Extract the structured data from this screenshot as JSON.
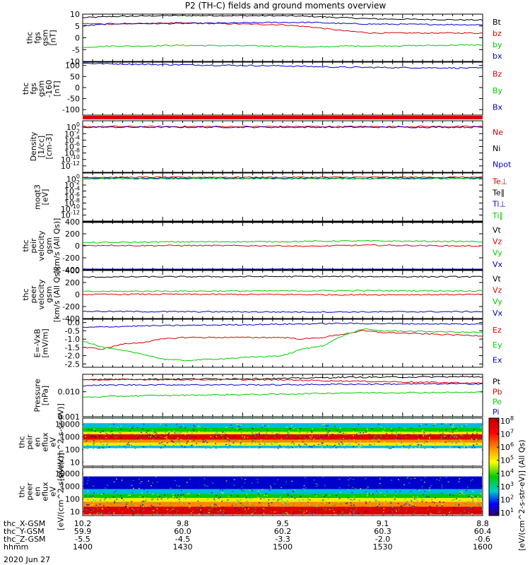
{
  "title": "P2 (TH-C) fields and ground moments overview",
  "footer": {
    "rows": [
      {
        "label": "thc_X-GSM",
        "values": [
          "10.2",
          "9.8",
          "9.5",
          "9.1",
          "8.8"
        ]
      },
      {
        "label": "thc_Y-GSM",
        "values": [
          "59.9",
          "60.0",
          "60.2",
          "60.3",
          "60.4"
        ]
      },
      {
        "label": "thc_Z-GSM",
        "values": [
          "-5.5",
          "-4.5",
          "-3.3",
          "-2.0",
          "-0.6"
        ]
      },
      {
        "label": "hhmm",
        "values": [
          "1400",
          "1430",
          "1500",
          "1530",
          "1600"
        ]
      }
    ],
    "date": "2020 Jun 27"
  },
  "colorbar": {
    "label": "[eV/(cm^2-s-str-eV)] (All Qs)",
    "ticks": [
      "10^8",
      "10^7",
      "10^6",
      "10^5",
      "10^4",
      "10^3",
      "10^2",
      "10^1"
    ]
  },
  "colors": {
    "black": "#000000",
    "red": "#dd0000",
    "green": "#00cc00",
    "blue": "#0000cc",
    "orange": "#ff8800",
    "cyan": "#00bbdd",
    "yellow": "#eeee00"
  },
  "chart_data": [
    {
      "type": "line",
      "ylabel": [
        "thc",
        "fgs",
        "gsm",
        "[nT]"
      ],
      "ylim": [
        -10,
        10
      ],
      "yticks": [
        "10",
        "5",
        "0",
        "-5",
        "-10"
      ],
      "series": [
        {
          "name": "Bt",
          "color": "#000000",
          "x": [
            1400,
            1415,
            1430,
            1445,
            1500,
            1515,
            1530,
            1545,
            1600
          ],
          "values": [
            8.5,
            9.0,
            9.2,
            9.4,
            9.3,
            9.0,
            8.5,
            8.0,
            7.5
          ]
        },
        {
          "name": "bz",
          "color": "#dd0000",
          "x": [
            1400,
            1415,
            1430,
            1445,
            1500,
            1515,
            1530,
            1545,
            1600
          ],
          "values": [
            6.0,
            5.8,
            6.0,
            6.3,
            5.5,
            4.5,
            3.0,
            2.0,
            2.0
          ]
        },
        {
          "name": "by",
          "color": "#00cc00",
          "x": [
            1400,
            1415,
            1430,
            1445,
            1500,
            1515,
            1530,
            1545,
            1600
          ],
          "values": [
            -4.0,
            -3.5,
            -3.5,
            -3.2,
            -3.5,
            -4.0,
            -3.5,
            -3.5,
            -3.0
          ]
        },
        {
          "name": "bx",
          "color": "#0000cc",
          "x": [
            1400,
            1415,
            1430,
            1445,
            1500,
            1515,
            1530,
            1545,
            1600
          ],
          "values": [
            5.0,
            6.0,
            6.0,
            6.0,
            6.5,
            6.5,
            6.0,
            5.8,
            5.5
          ]
        }
      ]
    },
    {
      "type": "line",
      "ylabel": [
        "thc",
        "fgs",
        "gsm",
        "-160",
        "[nT]"
      ],
      "ylim": [
        -125,
        115
      ],
      "yticks": [
        "100",
        "50",
        "0",
        "-50",
        "-100"
      ],
      "series": [
        {
          "name": "Bz",
          "color": "#dd0000",
          "x": [],
          "values": []
        },
        {
          "name": "By",
          "color": "#00cc00",
          "x": [],
          "values": []
        },
        {
          "name": "Bx",
          "color": "#0000cc",
          "x": [
            1400,
            1430,
            1500,
            1530,
            1600
          ],
          "values": [
            110,
            105,
            98,
            92,
            88
          ]
        }
      ]
    },
    {
      "type": "line",
      "ylabel": [
        "Density",
        "[1/cc]",
        "[cm-3]"
      ],
      "ylim": [
        -14,
        2
      ],
      "yticks": [
        "10^0",
        "10^-2",
        "10^-4",
        "10^-6",
        "10^-8",
        "10^-10",
        "10^-12"
      ],
      "series": [
        {
          "name": "Ne",
          "color": "#dd0000",
          "x": [
            1400,
            1600
          ],
          "values": [
            0.2,
            0.2
          ]
        },
        {
          "name": "Ni",
          "color": "#000000",
          "x": [],
          "values": []
        },
        {
          "name": "Npot",
          "color": "#0000cc",
          "x": [
            1400,
            1600
          ],
          "values": [
            0.0,
            0.0
          ]
        }
      ]
    },
    {
      "type": "line",
      "ylabel": [
        "moqt3",
        "[eV]"
      ],
      "ylim": [
        -14,
        2
      ],
      "yticks": [
        "10^0",
        "10^-2",
        "10^-4",
        "10^-6",
        "10^-8",
        "10^-10",
        "10^-12"
      ],
      "series": [
        {
          "name": "Te⊥",
          "color": "#dd0000",
          "x": [
            1400,
            1600
          ],
          "values": [
            0.6,
            0.6
          ]
        },
        {
          "name": "Te∥",
          "color": "#000000",
          "x": [],
          "values": []
        },
        {
          "name": "Ti⊥",
          "color": "#0000cc",
          "x": [
            1400,
            1600
          ],
          "values": [
            0.3,
            0.3
          ]
        },
        {
          "name": "Ti∥",
          "color": "#00cc00",
          "x": [
            1400,
            1600
          ],
          "values": [
            0.1,
            0.1
          ]
        }
      ]
    },
    {
      "type": "line",
      "ylabel": [
        "thc",
        "peir",
        "velocity",
        "gsm",
        "[km/s (All Qs)]"
      ],
      "ylim": [
        -400,
        400
      ],
      "yticks": [
        "400",
        "200",
        "0",
        "-200",
        "-400"
      ],
      "series": [
        {
          "name": "Vt",
          "color": "#000000",
          "x": [
            1400,
            1430,
            1500,
            1530,
            1600
          ],
          "values": [
            405,
            405,
            403,
            404,
            405
          ]
        },
        {
          "name": "Vz",
          "color": "#dd0000",
          "x": [
            1400,
            1415,
            1430,
            1445,
            1500,
            1515,
            1530,
            1545,
            1600
          ],
          "values": [
            5,
            8,
            2,
            5,
            0,
            -10,
            5,
            10,
            -5
          ]
        },
        {
          "name": "Vy",
          "color": "#00cc00",
          "x": [
            1400,
            1415,
            1430,
            1445,
            1500,
            1515,
            1530,
            1545,
            1600
          ],
          "values": [
            50,
            55,
            60,
            65,
            70,
            75,
            80,
            80,
            70
          ]
        },
        {
          "name": "Vx",
          "color": "#0000cc",
          "x": [
            1400,
            1430,
            1500,
            1530,
            1600
          ],
          "values": [
            -395,
            -395,
            -393,
            -395,
            -396
          ]
        }
      ]
    },
    {
      "type": "line",
      "ylabel": [
        "thc",
        "peer",
        "velocity",
        "gsm",
        "[km/s (All Qs)]"
      ],
      "ylim": [
        -400,
        400
      ],
      "yticks": [
        "400",
        "200",
        "0",
        "-200",
        "-400"
      ],
      "series": [
        {
          "name": "Vt",
          "color": "#000000",
          "x": [
            1400,
            1430,
            1500,
            1530,
            1600
          ],
          "values": [
            290,
            295,
            300,
            300,
            295
          ]
        },
        {
          "name": "Vz",
          "color": "#dd0000",
          "x": [
            1400,
            1430,
            1500,
            1530,
            1600
          ],
          "values": [
            0,
            5,
            0,
            -5,
            0
          ]
        },
        {
          "name": "Vy",
          "color": "#00cc00",
          "x": [
            1400,
            1430,
            1500,
            1530,
            1600
          ],
          "values": [
            50,
            55,
            60,
            65,
            60
          ]
        },
        {
          "name": "Vx",
          "color": "#0000cc",
          "x": [
            1400,
            1430,
            1500,
            1530,
            1600
          ],
          "values": [
            -280,
            -285,
            -290,
            -290,
            -285
          ]
        }
      ]
    },
    {
      "type": "line",
      "ylabel": [
        "E=-VxB",
        "[mV/m]"
      ],
      "ylim": [
        -2.7,
        0.2
      ],
      "yticks": [
        "0.0",
        "-0.5",
        "-1.0",
        "-1.5",
        "-2.0",
        "-2.5"
      ],
      "series": [
        {
          "name": "Ez",
          "color": "#dd0000",
          "x": [
            1400,
            1410,
            1420,
            1430,
            1440,
            1450,
            1500,
            1510,
            1520,
            1530,
            1540,
            1550,
            1600
          ],
          "values": [
            -1.5,
            -1.6,
            -1.3,
            -1.2,
            -1.0,
            -0.9,
            -0.9,
            -1.0,
            -0.9,
            -0.7,
            -0.5,
            -0.6,
            -0.8
          ]
        },
        {
          "name": "Ey",
          "color": "#00cc00",
          "x": [
            1400,
            1410,
            1420,
            1430,
            1440,
            1450,
            1500,
            1510,
            1520,
            1530,
            1540,
            1550,
            1600
          ],
          "values": [
            -1.1,
            -1.5,
            -1.7,
            -1.9,
            -2.2,
            -2.3,
            -2.0,
            -1.6,
            -1.4,
            -0.8,
            -0.4,
            -0.5,
            -0.6
          ]
        },
        {
          "name": "Ex",
          "color": "#0000cc",
          "x": [
            1400,
            1430,
            1500,
            1530,
            1600
          ],
          "values": [
            -0.3,
            -0.2,
            -0.1,
            -0.05,
            -0.1
          ]
        }
      ]
    },
    {
      "type": "line",
      "ylabel": [
        "Pressure",
        "[nPa]"
      ],
      "ylim": [
        0.001,
        0.05
      ],
      "ylog": true,
      "yticks": [
        "0.010",
        "0.001"
      ],
      "series": [
        {
          "name": "Pt",
          "color": "#000000",
          "x": [
            1400,
            1430,
            1500,
            1530,
            1600
          ],
          "values": [
            0.031,
            0.032,
            0.034,
            0.038,
            0.04
          ]
        },
        {
          "name": "Pb",
          "color": "#dd0000",
          "x": [
            1400,
            1430,
            1500,
            1530,
            1600
          ],
          "values": [
            0.03,
            0.031,
            0.03,
            0.027,
            0.022
          ]
        },
        {
          "name": "Pe",
          "color": "#00cc00",
          "x": [
            1400,
            1430,
            1500,
            1530,
            1600
          ],
          "values": [
            0.006,
            0.007,
            0.008,
            0.009,
            0.0095
          ]
        },
        {
          "name": "Pi",
          "color": "#0000cc",
          "x": [
            1400,
            1430,
            1500,
            1530,
            1600
          ],
          "values": [
            0.018,
            0.019,
            0.019,
            0.02,
            0.021
          ]
        }
      ]
    },
    {
      "type": "heatmap",
      "ylabel": [
        "thc",
        "peir",
        "en",
        "eflux",
        "eV",
        "[eV/(cm^2-s-sr-eV)]"
      ],
      "ylim": [
        5,
        30000
      ],
      "ylog": true,
      "yticks": [
        "10000",
        "1000",
        "100",
        "10"
      ],
      "energy_bands": [
        {
          "from": 12000,
          "to": 5000,
          "level": "cyan"
        },
        {
          "from": 5000,
          "to": 2500,
          "level": "green"
        },
        {
          "from": 2500,
          "to": 1600,
          "level": "yellow"
        },
        {
          "from": 1600,
          "to": 600,
          "level": "red"
        },
        {
          "from": 600,
          "to": 350,
          "level": "orange"
        },
        {
          "from": 350,
          "to": 200,
          "level": "yellow"
        },
        {
          "from": 200,
          "to": 130,
          "level": "cyan"
        }
      ]
    },
    {
      "type": "heatmap",
      "ylabel": [
        "thc",
        "peer",
        "en",
        "eflux",
        "eV",
        "[eV/(cm^2-s-sr-eV)]"
      ],
      "ylim": [
        5,
        30000
      ],
      "ylog": true,
      "yticks": [
        "10000",
        "1000",
        "100",
        "10"
      ],
      "energy_bands": [
        {
          "from": 6000,
          "to": 600,
          "level": "blue"
        },
        {
          "from": 600,
          "to": 250,
          "level": "cyan"
        },
        {
          "from": 250,
          "to": 120,
          "level": "green"
        },
        {
          "from": 120,
          "to": 60,
          "level": "yellow"
        },
        {
          "from": 60,
          "to": 25,
          "level": "orange"
        },
        {
          "from": 25,
          "to": 6,
          "level": "red"
        }
      ]
    }
  ]
}
